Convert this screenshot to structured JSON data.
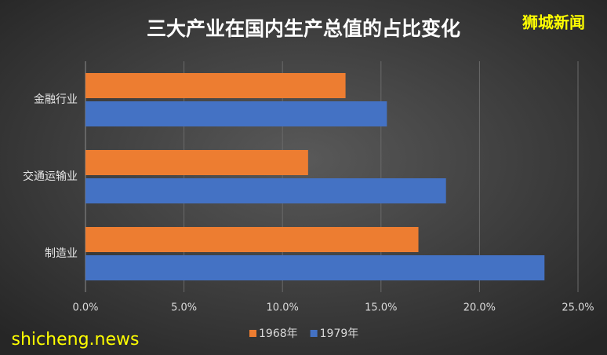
{
  "chart_data": {
    "type": "hbar",
    "title": "三大产业在国内生产总值的占比变化",
    "categories": [
      "金融行业",
      "交通运输业",
      "制造业"
    ],
    "series": [
      {
        "name": "1968年",
        "color": "#ed7d31",
        "values": [
          13.2,
          11.3,
          16.9
        ]
      },
      {
        "name": "1979年",
        "color": "#4472c4",
        "values": [
          15.3,
          18.3,
          23.3
        ]
      }
    ],
    "xlim": [
      0,
      25
    ],
    "xticks": [
      {
        "value": 0,
        "label": "0.0%"
      },
      {
        "value": 5,
        "label": "5.0%"
      },
      {
        "value": 10,
        "label": "10.0%"
      },
      {
        "value": 15,
        "label": "15.0%"
      },
      {
        "value": 20,
        "label": "20.0%"
      },
      {
        "value": 25,
        "label": "25.0%"
      }
    ],
    "grid": true,
    "legend": "bottom"
  },
  "watermarks": [
    "狮城新闻",
    "shicheng.news"
  ]
}
